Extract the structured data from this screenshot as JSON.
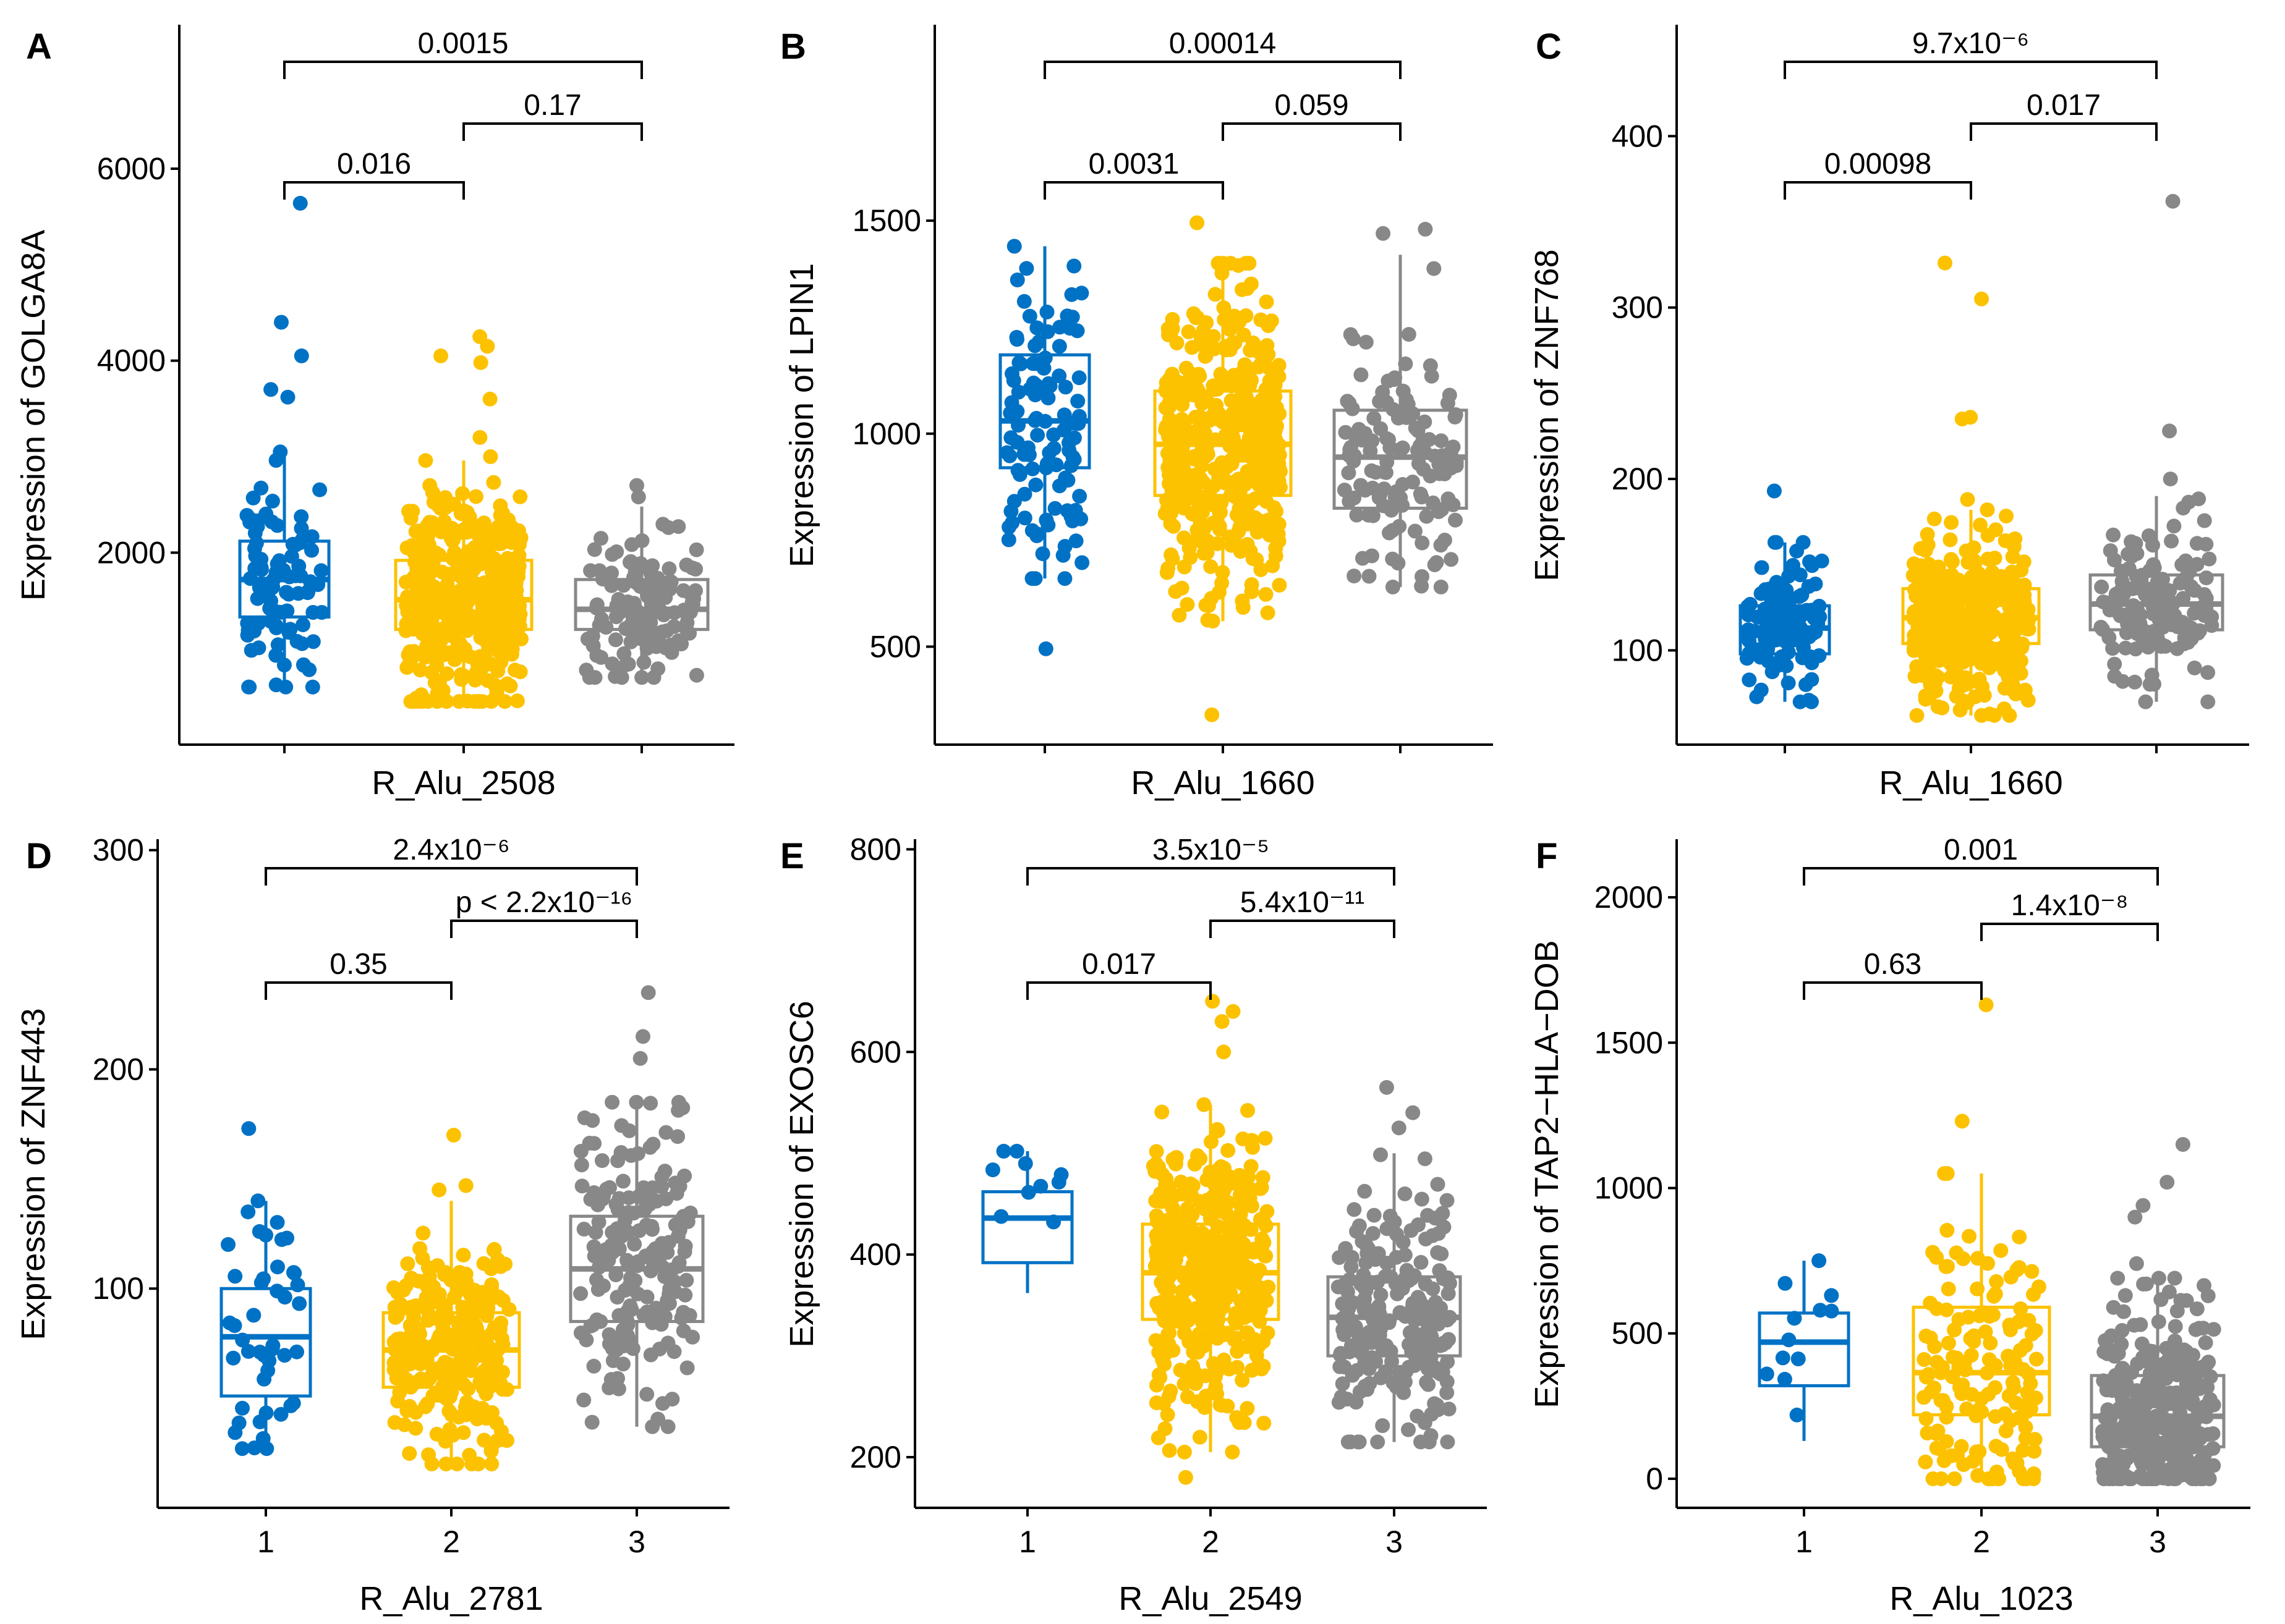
{
  "colors": {
    "group1": "#0072C5",
    "group2": "#FCC200",
    "group3": "#888888",
    "axis": "#000000"
  },
  "chart_data": [
    {
      "type": "box",
      "panel": "A",
      "title": "",
      "xlabel": "R_Alu_2508",
      "ylabel": "Expression of GOLGA8A",
      "categories": [
        "1",
        "2",
        "3"
      ],
      "show_x_tick_labels": false,
      "ylim": [
        0,
        7500
      ],
      "yticks": [
        2000,
        4000,
        6000
      ],
      "boxes": [
        {
          "group": "1",
          "q1": 1330,
          "median": 1720,
          "q3": 2120,
          "whisker_low": 600,
          "whisker_high": 3050,
          "n_points": 90,
          "outliers": [
            3620,
            3700,
            4050,
            4400,
            5640
          ]
        },
        {
          "group": "2",
          "q1": 1200,
          "median": 1510,
          "q3": 1920,
          "whisker_low": 450,
          "whisker_high": 2960,
          "n_points": 420,
          "outliers": [
            3000,
            3200,
            3600,
            3980,
            4050,
            4150,
            4250
          ]
        },
        {
          "group": "3",
          "q1": 1200,
          "median": 1410,
          "q3": 1720,
          "whisker_low": 700,
          "whisker_high": 2480,
          "n_points": 130,
          "outliers": [
            2580,
            2700
          ]
        }
      ],
      "comparisons": [
        {
          "groups": [
            "1",
            "2"
          ],
          "label": "0.016"
        },
        {
          "groups": [
            "2",
            "3"
          ],
          "label": "0.17"
        },
        {
          "groups": [
            "1",
            "3"
          ],
          "label": "0.0015"
        }
      ]
    },
    {
      "type": "box",
      "panel": "B",
      "title": "",
      "xlabel": "R_Alu_1660",
      "ylabel": "Expression of LPIN1",
      "categories": [
        "1",
        "2",
        "3"
      ],
      "show_x_tick_labels": false,
      "ylim": [
        270,
        1960
      ],
      "yticks": [
        500,
        1000,
        1500
      ],
      "boxes": [
        {
          "group": "1",
          "q1": 920,
          "median": 1030,
          "q3": 1185,
          "whisker_low": 660,
          "whisker_high": 1440,
          "n_points": 110,
          "outliers": [
            495
          ]
        },
        {
          "group": "2",
          "q1": 855,
          "median": 975,
          "q3": 1100,
          "whisker_low": 560,
          "whisker_high": 1400,
          "n_points": 450,
          "outliers": [
            340,
            1495
          ]
        },
        {
          "group": "3",
          "q1": 825,
          "median": 945,
          "q3": 1055,
          "whisker_low": 640,
          "whisker_high": 1420,
          "n_points": 130,
          "outliers": [
            1470,
            1480
          ]
        }
      ],
      "comparisons": [
        {
          "groups": [
            "1",
            "2"
          ],
          "label": "0.0031"
        },
        {
          "groups": [
            "2",
            "3"
          ],
          "label": "0.059"
        },
        {
          "groups": [
            "1",
            "3"
          ],
          "label": "0.00014"
        }
      ]
    },
    {
      "type": "box",
      "panel": "C",
      "title": "",
      "xlabel": "R_Alu_1660",
      "ylabel": "Expression of ZNF768",
      "categories": [
        "1",
        "2",
        "3"
      ],
      "show_x_tick_labels": false,
      "ylim": [
        45,
        465
      ],
      "yticks": [
        100,
        200,
        300,
        400
      ],
      "boxes": [
        {
          "group": "1",
          "q1": 98,
          "median": 113,
          "q3": 126,
          "whisker_low": 70,
          "whisker_high": 163,
          "n_points": 120,
          "outliers": [
            193
          ]
        },
        {
          "group": "2",
          "q1": 104,
          "median": 119,
          "q3": 136,
          "whisker_low": 62,
          "whisker_high": 182,
          "n_points": 420,
          "outliers": [
            188,
            235,
            236,
            305,
            326
          ]
        },
        {
          "group": "3",
          "q1": 112,
          "median": 127,
          "q3": 144,
          "whisker_low": 70,
          "whisker_high": 190,
          "n_points": 140,
          "outliers": [
            200,
            228,
            362
          ]
        }
      ],
      "comparisons": [
        {
          "groups": [
            "1",
            "2"
          ],
          "label": "0.00098"
        },
        {
          "groups": [
            "2",
            "3"
          ],
          "label": "0.017"
        },
        {
          "groups": [
            "1",
            "3"
          ],
          "label": "9.7x10⁻⁶"
        }
      ]
    },
    {
      "type": "box",
      "panel": "D",
      "title": "",
      "xlabel": "R_Alu_2781",
      "ylabel": "Expression of ZNF443",
      "categories": [
        "1",
        "2",
        "3"
      ],
      "show_x_tick_labels": true,
      "ylim": [
        0,
        305
      ],
      "yticks": [
        100,
        200,
        300
      ],
      "boxes": [
        {
          "group": "1",
          "q1": 51,
          "median": 78,
          "q3": 100,
          "whisker_low": 27,
          "whisker_high": 140,
          "n_points": 45,
          "outliers": [
            173
          ]
        },
        {
          "group": "2",
          "q1": 55,
          "median": 72,
          "q3": 89,
          "whisker_low": 20,
          "whisker_high": 140,
          "n_points": 260,
          "outliers": [
            145,
            147,
            170
          ]
        },
        {
          "group": "3",
          "q1": 85,
          "median": 109,
          "q3": 133,
          "whisker_low": 37,
          "whisker_high": 185,
          "n_points": 190,
          "outliers": [
            205,
            215,
            235
          ]
        }
      ],
      "comparisons": [
        {
          "groups": [
            "1",
            "2"
          ],
          "label": "0.35"
        },
        {
          "groups": [
            "2",
            "3"
          ],
          "label": "p < 2.2x10⁻¹⁶"
        },
        {
          "groups": [
            "1",
            "3"
          ],
          "label": "2.4x10⁻⁶"
        }
      ]
    },
    {
      "type": "box",
      "panel": "E",
      "title": "",
      "xlabel": "R_Alu_2549",
      "ylabel": "Expression of EXOSC6",
      "categories": [
        "1",
        "2",
        "3"
      ],
      "show_x_tick_labels": true,
      "ylim": [
        150,
        810
      ],
      "yticks": [
        200,
        400,
        600,
        800
      ],
      "boxes": [
        {
          "group": "1",
          "q1": 392,
          "median": 436,
          "q3": 462,
          "whisker_low": 362,
          "whisker_high": 502,
          "n_points": 10,
          "outliers": []
        },
        {
          "group": "2",
          "q1": 336,
          "median": 382,
          "q3": 430,
          "whisker_low": 205,
          "whisker_high": 548,
          "n_points": 430,
          "outliers": [
            180,
            600,
            630,
            640,
            650
          ]
        },
        {
          "group": "3",
          "q1": 300,
          "median": 338,
          "q3": 378,
          "whisker_low": 215,
          "whisker_high": 500,
          "n_points": 230,
          "outliers": [
            525,
            540,
            565
          ]
        }
      ],
      "comparisons": [
        {
          "groups": [
            "1",
            "2"
          ],
          "label": "0.017"
        },
        {
          "groups": [
            "2",
            "3"
          ],
          "label": "5.4x10⁻¹¹"
        },
        {
          "groups": [
            "1",
            "3"
          ],
          "label": "3.5x10⁻⁵"
        }
      ]
    },
    {
      "type": "box",
      "panel": "F",
      "title": "",
      "xlabel": "R_Alu_1023",
      "ylabel": "Expression of TAP2−HLA−DOB",
      "categories": [
        "1",
        "2",
        "3"
      ],
      "show_x_tick_labels": true,
      "ylim": [
        -100,
        2200
      ],
      "yticks": [
        0,
        500,
        1000,
        1500,
        2000
      ],
      "boxes": [
        {
          "group": "1",
          "q1": 320,
          "median": 470,
          "q3": 570,
          "whisker_low": 130,
          "whisker_high": 750,
          "n_points": 12,
          "outliers": []
        },
        {
          "group": "2",
          "q1": 220,
          "median": 365,
          "q3": 590,
          "whisker_low": 0,
          "whisker_high": 1050,
          "n_points": 150,
          "outliers": [
            1230,
            1630
          ]
        },
        {
          "group": "3",
          "q1": 110,
          "median": 215,
          "q3": 355,
          "whisker_low": 0,
          "whisker_high": 690,
          "n_points": 330,
          "outliers": [
            740,
            900,
            940,
            1020,
            1150
          ]
        }
      ],
      "comparisons": [
        {
          "groups": [
            "1",
            "2"
          ],
          "label": "0.63"
        },
        {
          "groups": [
            "2",
            "3"
          ],
          "label": "1.4x10⁻⁸"
        },
        {
          "groups": [
            "1",
            "3"
          ],
          "label": "0.001"
        }
      ]
    }
  ]
}
